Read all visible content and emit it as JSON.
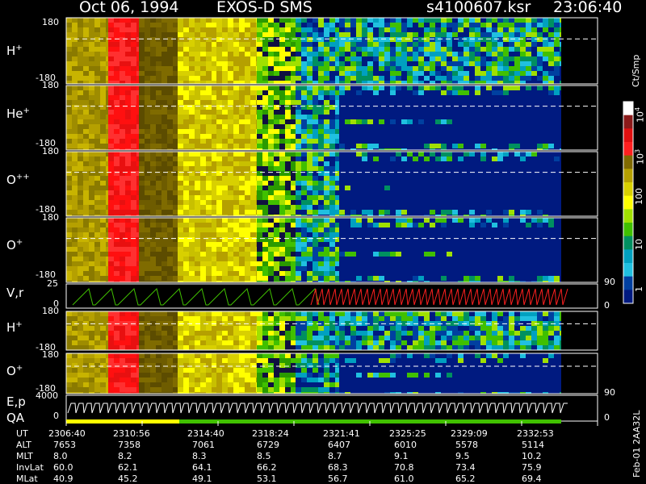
{
  "header": {
    "date": "Oct 06, 1994",
    "instrument": "EXOS-D SMS",
    "file": "s4100607.ksr",
    "time": "23:06:40"
  },
  "panels": [
    {
      "label": "H",
      "sup": "+",
      "top": "180",
      "bottom": "-180"
    },
    {
      "label": "He",
      "sup": "+",
      "top": "180",
      "bottom": "-180"
    },
    {
      "label": "O",
      "sup": "++",
      "top": "180",
      "bottom": "-180"
    },
    {
      "label": "O",
      "sup": "+",
      "top": "180",
      "bottom": "-180"
    }
  ],
  "vr_panel": {
    "label": "V,r",
    "top": "25",
    "bottom": "0",
    "right_top": "90",
    "right_bottom": "0"
  },
  "panels2": [
    {
      "label": "H",
      "sup": "+",
      "top": "180",
      "bottom": "-180"
    },
    {
      "label": "O",
      "sup": "+",
      "top": "180",
      "bottom": "-180"
    }
  ],
  "ep_panel": {
    "label1": "E,p",
    "label2": "QA",
    "top": "4000",
    "bottom": "0",
    "right_top": "90",
    "right_bottom": "0"
  },
  "colorbar": {
    "unit": "Ct/Smp",
    "ticks": [
      {
        "base": "10",
        "exp": "4"
      },
      {
        "base": "10",
        "exp": "3"
      },
      {
        "base": "100",
        "exp": ""
      },
      {
        "base": "10",
        "exp": ""
      },
      {
        "base": "1",
        "exp": ""
      }
    ],
    "colors": [
      "#ffffff",
      "#8b1a1a",
      "#e01010",
      "#ff2020",
      "#806a00",
      "#b5a000",
      "#d8d000",
      "#ffff00",
      "#a0e000",
      "#40c000",
      "#009060",
      "#00a0c0",
      "#20c0e0",
      "#0040a0",
      "#001a80"
    ]
  },
  "footer_id": "Feb-01 2AA32L",
  "table": {
    "rows": [
      {
        "name": "UT",
        "values": [
          "2306:40",
          "2310:56",
          "2314:40",
          "2318:24",
          "2321:41",
          "2325:25",
          "2329:09",
          "2332:53"
        ]
      },
      {
        "name": "ALT",
        "values": [
          "7653",
          "7358",
          "7061",
          "6729",
          "6407",
          "6010",
          "5578",
          "5114"
        ]
      },
      {
        "name": "MLT",
        "values": [
          "8.0",
          "8.2",
          "8.3",
          "8.5",
          "8.7",
          "9.1",
          "9.5",
          "10.2"
        ]
      },
      {
        "name": "InvLat",
        "values": [
          "60.0",
          "62.1",
          "64.1",
          "66.2",
          "68.3",
          "70.8",
          "73.4",
          "75.9"
        ]
      },
      {
        "name": "MLat",
        "values": [
          "40.9",
          "45.2",
          "49.1",
          "53.1",
          "56.7",
          "61.0",
          "65.2",
          "69.4"
        ]
      }
    ]
  },
  "chart_data": {
    "type": "heatmap",
    "title": "Oct 06, 1994 EXOS-D SMS",
    "xlabel": "UT",
    "x_ticks": [
      "2306:40",
      "2310:56",
      "2314:40",
      "2318:24",
      "2321:41",
      "2325:25",
      "2329:09",
      "2332:53"
    ],
    "panels": [
      "H+",
      "He+",
      "O++",
      "O+",
      "V,r",
      "H+",
      "O+",
      "E,p QA"
    ],
    "pitch_range": [
      -180,
      180
    ],
    "vr_range": [
      0,
      25
    ],
    "energy_range": [
      0,
      4000
    ],
    "colorbar_range": [
      1,
      10000
    ],
    "colorbar_scale": "log",
    "colorbar_label": "Ct/Smp"
  }
}
